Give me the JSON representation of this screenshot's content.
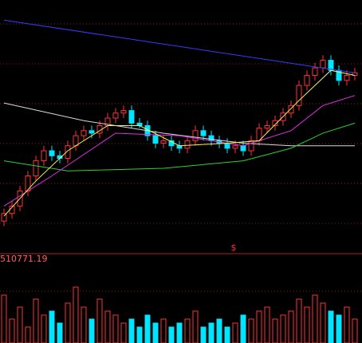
{
  "chart_data": [
    {
      "type": "candlestick",
      "annotation": "$",
      "ylim": [
        0,
        100
      ],
      "open": [
        12,
        15,
        18,
        24,
        30,
        36,
        40,
        38,
        37,
        42,
        46,
        48,
        47,
        50,
        53,
        55,
        56,
        51,
        50,
        46,
        43,
        44,
        42,
        41,
        44,
        48,
        46,
        44,
        43,
        41,
        42,
        40,
        44,
        49,
        50,
        52,
        55,
        58,
        66,
        70,
        73,
        76,
        72,
        68,
        70
      ],
      "high": [
        17,
        20,
        26,
        32,
        38,
        42,
        42,
        40,
        44,
        48,
        50,
        50,
        52,
        55,
        57,
        58,
        58,
        53,
        52,
        48,
        46,
        46,
        44,
        46,
        50,
        50,
        48,
        46,
        45,
        44,
        44,
        46,
        51,
        52,
        54,
        57,
        60,
        68,
        72,
        75,
        78,
        78,
        74,
        72,
        73
      ],
      "low": [
        10,
        13,
        16,
        22,
        28,
        34,
        36,
        35,
        35,
        40,
        44,
        45,
        45,
        48,
        51,
        53,
        49,
        49,
        44,
        41,
        41,
        40,
        39,
        39,
        42,
        44,
        42,
        41,
        39,
        39,
        38,
        38,
        42,
        47,
        48,
        50,
        53,
        56,
        64,
        68,
        71,
        70,
        66,
        66,
        68
      ],
      "close": [
        15,
        18,
        24,
        30,
        36,
        40,
        38,
        37,
        42,
        46,
        48,
        47,
        50,
        53,
        55,
        56,
        51,
        50,
        46,
        43,
        44,
        42,
        41,
        44,
        48,
        46,
        44,
        43,
        41,
        42,
        40,
        44,
        49,
        50,
        52,
        55,
        58,
        66,
        70,
        73,
        76,
        72,
        68,
        70,
        71
      ],
      "up_color": "#ff3232",
      "down_color": "#00e4ff",
      "lines": [
        {
          "color": "#3a3aff",
          "x": [
            0,
            44
          ],
          "values": [
            92,
            71
          ]
        },
        {
          "color": "#d8d8d8",
          "x": [
            0,
            10,
            20,
            30,
            36,
            44
          ],
          "values": [
            59,
            52,
            47,
            43,
            42,
            42
          ]
        },
        {
          "color": "#2ed12e",
          "x": [
            0,
            8,
            20,
            30,
            36,
            40,
            44
          ],
          "values": [
            36,
            32,
            33,
            36,
            41,
            47,
            51
          ]
        },
        {
          "color": "#e030e0",
          "x": [
            0,
            6,
            14,
            22,
            30,
            36,
            40,
            44
          ],
          "values": [
            18,
            30,
            47,
            46,
            42,
            48,
            58,
            62
          ]
        },
        {
          "color": "#f0f060",
          "x": [
            0,
            4,
            8,
            13,
            17,
            22,
            28,
            32,
            37,
            41,
            44
          ],
          "values": [
            14,
            28,
            40,
            50,
            50,
            42,
            43,
            44,
            60,
            72,
            70
          ]
        }
      ]
    },
    {
      "type": "bar",
      "title": "510771.19",
      "ylim": [
        0,
        100
      ],
      "values": [
        60,
        30,
        45,
        20,
        55,
        35,
        40,
        25,
        50,
        70,
        45,
        30,
        55,
        40,
        35,
        25,
        30,
        20,
        35,
        25,
        30,
        20,
        25,
        30,
        40,
        20,
        25,
        30,
        20,
        25,
        35,
        30,
        40,
        45,
        30,
        35,
        40,
        55,
        45,
        60,
        50,
        40,
        35,
        45,
        30
      ]
    }
  ]
}
